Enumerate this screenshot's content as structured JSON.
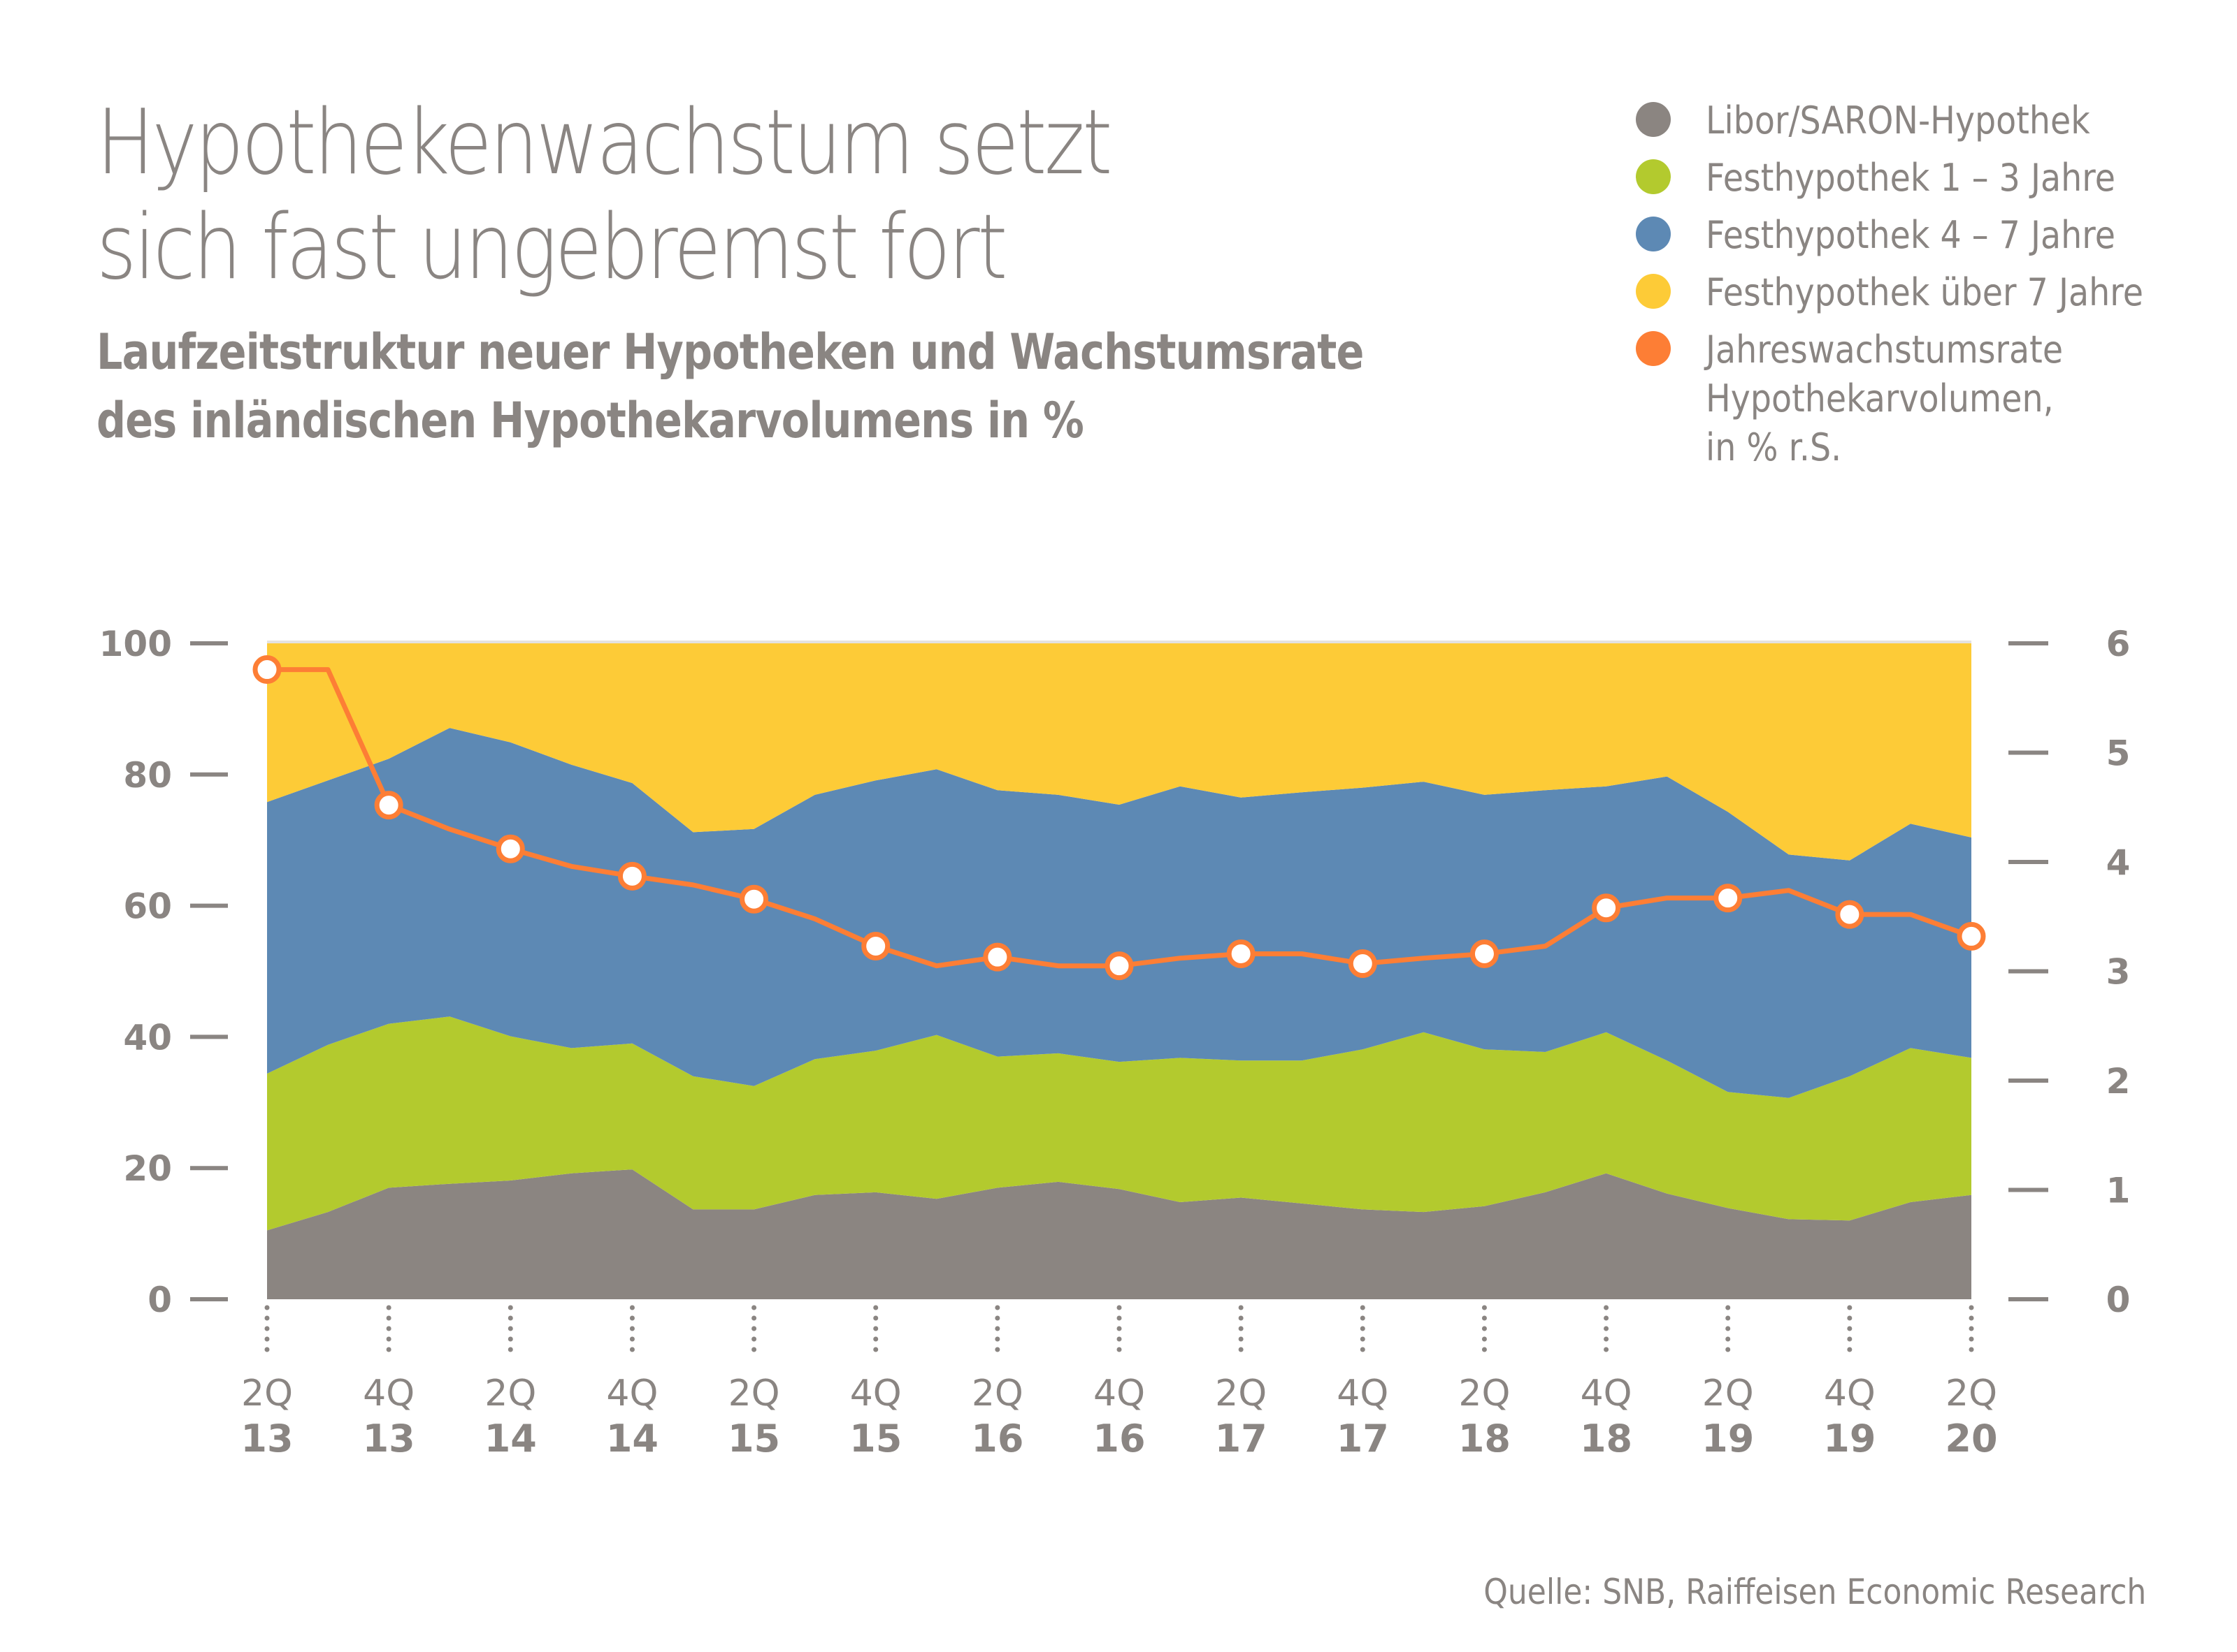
{
  "header": {
    "title_line1": "Hypothekenwachstum setzt",
    "title_line2": "sich fast ungebremst fort",
    "subtitle_line1": "Laufzeitstruktur neuer Hypotheken und Wachstumsrate",
    "subtitle_line2": "des inländischen Hypothekarvolumens in %"
  },
  "legend": [
    {
      "label": "Libor/SARON-Hypothek",
      "color": "#8b8581"
    },
    {
      "label": "Festhypothek 1 – 3 Jahre",
      "color": "#b3ca2e"
    },
    {
      "label": "Festhypothek 4 – 7 Jahre",
      "color": "#5d89b4"
    },
    {
      "label": "Festhypothek über 7 Jahre",
      "color": "#fdcb37"
    },
    {
      "label": "Jahreswachstumsrate\nHypothekarvolumen,\nin % r.S.",
      "color": "#fd7e35"
    }
  ],
  "source": "Quelle: SNB, Raiffeisen Economic Research",
  "chart_data": {
    "type": "area",
    "title": "Laufzeitstruktur neuer Hypotheken und Wachstumsrate des inländischen Hypothekarvolumens in %",
    "x": [
      "2Q13",
      "3Q13",
      "4Q13",
      "1Q14",
      "2Q14",
      "3Q14",
      "4Q14",
      "1Q15",
      "2Q15",
      "3Q15",
      "4Q15",
      "1Q16",
      "2Q16",
      "3Q16",
      "4Q16",
      "1Q17",
      "2Q17",
      "3Q17",
      "4Q17",
      "1Q18",
      "2Q18",
      "3Q18",
      "4Q18",
      "1Q19",
      "2Q19",
      "3Q19",
      "4Q19",
      "1Q20",
      "2Q20"
    ],
    "x_tick_labels": [
      {
        "q": "2Q",
        "y": "13"
      },
      {
        "q": "4Q",
        "y": "13"
      },
      {
        "q": "2Q",
        "y": "14"
      },
      {
        "q": "4Q",
        "y": "14"
      },
      {
        "q": "2Q",
        "y": "15"
      },
      {
        "q": "4Q",
        "y": "15"
      },
      {
        "q": "2Q",
        "y": "16"
      },
      {
        "q": "4Q",
        "y": "16"
      },
      {
        "q": "2Q",
        "y": "17"
      },
      {
        "q": "4Q",
        "y": "17"
      },
      {
        "q": "2Q",
        "y": "18"
      },
      {
        "q": "4Q",
        "y": "18"
      },
      {
        "q": "2Q",
        "y": "19"
      },
      {
        "q": "4Q",
        "y": "19"
      },
      {
        "q": "2Q",
        "y": "20"
      }
    ],
    "stacked": true,
    "series": [
      {
        "name": "Libor/SARON-Hypothek",
        "color": "#8b8581",
        "axis": "left",
        "values": [
          10.5,
          13.3,
          17.0,
          17.6,
          18.1,
          19.2,
          19.8,
          13.7,
          13.7,
          15.9,
          16.3,
          15.3,
          17.0,
          17.9,
          16.8,
          14.8,
          15.5,
          14.6,
          13.7,
          13.3,
          14.2,
          16.3,
          19.2,
          16.1,
          13.9,
          12.2,
          12.0,
          14.8,
          15.9
        ]
      },
      {
        "name": "Festhypothek 1 – 3 Jahre",
        "color": "#b3ca2e",
        "axis": "left",
        "values": [
          23.9,
          25.5,
          25.0,
          25.5,
          22.0,
          19.1,
          19.2,
          20.3,
          18.8,
          20.7,
          21.6,
          25.0,
          20.0,
          19.6,
          19.4,
          22.0,
          20.9,
          21.8,
          24.4,
          27.4,
          23.9,
          21.4,
          21.5,
          20.3,
          17.7,
          18.5,
          22.0,
          23.5,
          20.9
        ]
      },
      {
        "name": "Festhypothek 4 – 7 Jahre",
        "color": "#5d89b4",
        "axis": "left",
        "values": [
          41.4,
          40.3,
          40.4,
          44.0,
          44.8,
          43.2,
          39.7,
          37.2,
          39.2,
          40.3,
          41.2,
          40.5,
          40.6,
          39.4,
          39.2,
          41.4,
          40.1,
          40.9,
          39.9,
          38.2,
          38.8,
          39.9,
          37.5,
          43.3,
          42.7,
          37.1,
          32.9,
          34.2,
          33.6
        ]
      },
      {
        "name": "Festhypothek über 7 Jahre",
        "color": "#fdcb37",
        "axis": "left",
        "values": [
          24.2,
          20.9,
          17.6,
          12.9,
          15.1,
          18.5,
          21.3,
          28.8,
          28.3,
          23.1,
          20.9,
          19.2,
          22.4,
          23.1,
          24.6,
          21.8,
          23.5,
          22.7,
          22.0,
          21.1,
          23.1,
          22.4,
          21.8,
          20.3,
          25.7,
          32.2,
          33.1,
          27.5,
          29.6
        ]
      },
      {
        "name": "Jahreswachstumsrate Hypothekarvolumen, in % r.S.",
        "color": "#fd7e35",
        "type": "line",
        "axis": "right",
        "values": [
          5.76,
          5.76,
          4.52,
          4.3,
          4.12,
          3.96,
          3.87,
          3.79,
          3.66,
          3.48,
          3.23,
          3.05,
          3.13,
          3.05,
          3.05,
          3.12,
          3.16,
          3.16,
          3.07,
          3.12,
          3.16,
          3.23,
          3.58,
          3.67,
          3.67,
          3.74,
          3.52,
          3.52,
          3.32
        ],
        "markers_at_labeled_quarters": true
      }
    ],
    "y_left": {
      "ticks": [
        "0",
        "20",
        "40",
        "60",
        "80",
        "100"
      ],
      "range": [
        0,
        100
      ]
    },
    "y_right": {
      "ticks": [
        "0",
        "1",
        "2",
        "3",
        "4",
        "5",
        "6"
      ],
      "range": [
        0,
        6
      ]
    },
    "xlabel": "",
    "ylabel": "",
    "grid": false,
    "legend_position": "top-right"
  }
}
